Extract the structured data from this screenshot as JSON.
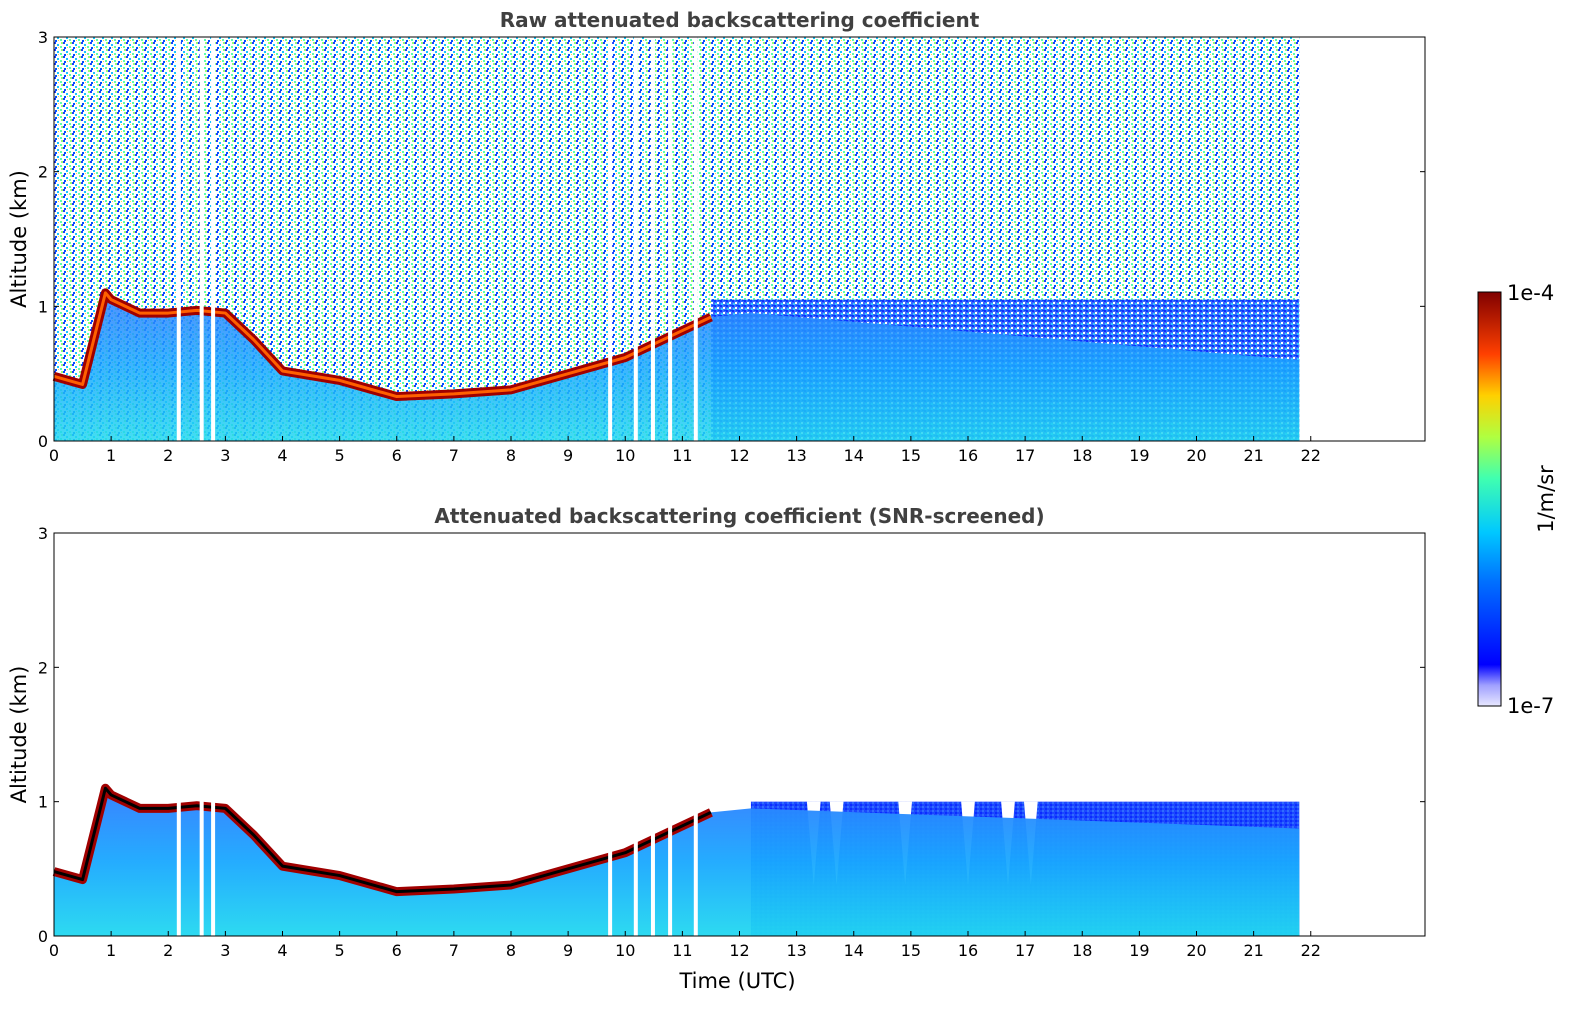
{
  "chart_data": [
    {
      "type": "heatmap",
      "title": "Raw attenuated backscattering coefficient",
      "xlabel": "",
      "ylabel": "Altitude (km)",
      "xlim": [
        0,
        24
      ],
      "ylim": [
        0,
        3
      ],
      "xticks": [
        "0",
        "1",
        "2",
        "3",
        "4",
        "5",
        "6",
        "7",
        "8",
        "9",
        "10",
        "11",
        "12",
        "13",
        "14",
        "15",
        "16",
        "17",
        "18",
        "19",
        "20",
        "21",
        "22"
      ],
      "yticks": [
        "0",
        "1",
        "2",
        "3"
      ],
      "data_extent_hours": [
        0,
        21.8
      ],
      "layer_top_km": {
        "time_h": [
          0,
          0.5,
          0.9,
          1.0,
          1.5,
          2.0,
          2.5,
          3.0,
          3.5,
          4.0,
          5.0,
          6.0,
          7.0,
          8.0,
          9.0,
          10.0,
          11.0,
          11.5
        ],
        "altitude": [
          0.48,
          0.42,
          1.1,
          1.05,
          0.95,
          0.95,
          0.97,
          0.95,
          0.75,
          0.52,
          0.45,
          0.33,
          0.35,
          0.38,
          0.5,
          0.62,
          0.82,
          0.92
        ]
      },
      "colorscale": "jet",
      "scale": "log"
    },
    {
      "type": "heatmap",
      "title": "Attenuated backscattering coefficient (SNR-screened)",
      "xlabel": "Time (UTC)",
      "ylabel": "Altitude (km)",
      "xlim": [
        0,
        24
      ],
      "ylim": [
        0,
        3
      ],
      "xticks": [
        "0",
        "1",
        "2",
        "3",
        "4",
        "5",
        "6",
        "7",
        "8",
        "9",
        "10",
        "11",
        "12",
        "13",
        "14",
        "15",
        "16",
        "17",
        "18",
        "19",
        "20",
        "21",
        "22"
      ],
      "yticks": [
        "0",
        "1",
        "2",
        "3"
      ],
      "data_extent_hours": [
        0,
        21.8
      ],
      "colorscale": "jet",
      "scale": "log"
    }
  ],
  "colorbar": {
    "label": "1/m/sr",
    "max_label": "1e-4",
    "min_label": "1e-7"
  }
}
